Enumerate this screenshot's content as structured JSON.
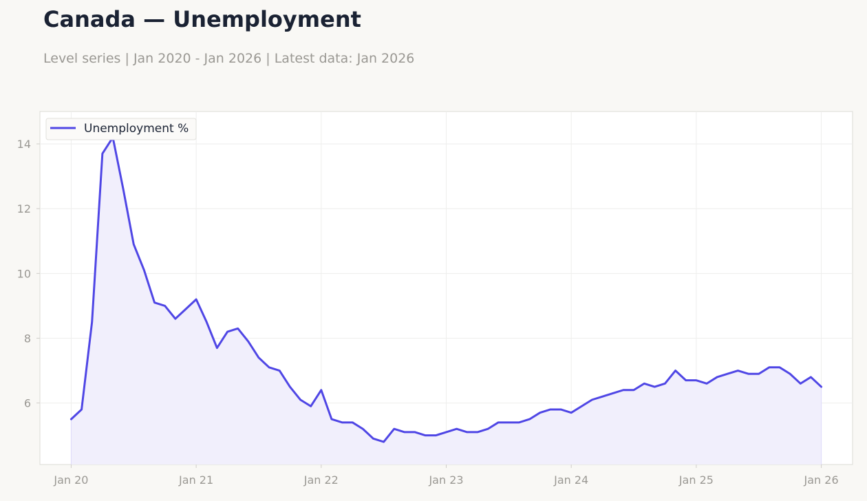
{
  "title": "Canada — Unemployment",
  "subtitle": "Level series | Jan 2020 - Jan 2026 | Latest data: Jan 2026",
  "colors": {
    "line": "#4f46e5",
    "fill": "#f1effc",
    "grid": "#eeeeec",
    "axis_text": "#9a9893",
    "title": "#1a2233"
  },
  "chart_data": {
    "type": "area",
    "title": "Canada — Unemployment",
    "xlabel": "",
    "ylabel": "",
    "x_range": [
      "2019-10",
      "2026-04"
    ],
    "ylim": [
      4.1,
      15.0
    ],
    "grid": true,
    "legend_position": "top-left",
    "x_ticks": [
      {
        "date": "2020-01",
        "label": "Jan 20"
      },
      {
        "date": "2021-01",
        "label": "Jan 21"
      },
      {
        "date": "2022-01",
        "label": "Jan 22"
      },
      {
        "date": "2023-01",
        "label": "Jan 23"
      },
      {
        "date": "2024-01",
        "label": "Jan 24"
      },
      {
        "date": "2025-01",
        "label": "Jan 25"
      },
      {
        "date": "2026-01",
        "label": "Jan 26"
      }
    ],
    "y_ticks": [
      6,
      8,
      10,
      12,
      14
    ],
    "series": [
      {
        "name": "Unemployment %",
        "x": [
          "2020-01",
          "2020-02",
          "2020-03",
          "2020-04",
          "2020-05",
          "2020-06",
          "2020-07",
          "2020-08",
          "2020-09",
          "2020-10",
          "2020-11",
          "2020-12",
          "2021-01",
          "2021-02",
          "2021-03",
          "2021-04",
          "2021-05",
          "2021-06",
          "2021-07",
          "2021-08",
          "2021-09",
          "2021-10",
          "2021-11",
          "2021-12",
          "2022-01",
          "2022-02",
          "2022-03",
          "2022-04",
          "2022-05",
          "2022-06",
          "2022-07",
          "2022-08",
          "2022-09",
          "2022-10",
          "2022-11",
          "2022-12",
          "2023-01",
          "2023-02",
          "2023-03",
          "2023-04",
          "2023-05",
          "2023-06",
          "2023-07",
          "2023-08",
          "2023-09",
          "2023-10",
          "2023-11",
          "2023-12",
          "2024-01",
          "2024-02",
          "2024-03",
          "2024-04",
          "2024-05",
          "2024-06",
          "2024-07",
          "2024-08",
          "2024-09",
          "2024-10",
          "2024-11",
          "2024-12",
          "2025-01",
          "2025-02",
          "2025-03",
          "2025-04",
          "2025-05",
          "2025-06",
          "2025-07",
          "2025-08",
          "2025-09",
          "2025-10",
          "2025-11",
          "2025-12",
          "2026-01"
        ],
        "values": [
          5.5,
          5.8,
          8.5,
          13.7,
          14.2,
          12.6,
          10.9,
          10.1,
          9.1,
          9.0,
          8.6,
          8.9,
          9.2,
          8.5,
          7.7,
          8.2,
          8.3,
          7.9,
          7.4,
          7.1,
          7.0,
          6.5,
          6.1,
          5.9,
          6.4,
          5.5,
          5.4,
          5.4,
          5.2,
          4.9,
          4.8,
          5.2,
          5.1,
          5.1,
          5.0,
          5.0,
          5.1,
          5.2,
          5.1,
          5.1,
          5.2,
          5.4,
          5.4,
          5.4,
          5.5,
          5.7,
          5.8,
          5.8,
          5.7,
          5.9,
          6.1,
          6.2,
          6.3,
          6.4,
          6.4,
          6.6,
          6.5,
          6.6,
          7.0,
          6.7,
          6.7,
          6.6,
          6.8,
          6.9,
          7.0,
          6.9,
          6.9,
          7.1,
          7.1,
          6.9,
          6.6,
          6.8,
          6.5
        ]
      }
    ]
  }
}
